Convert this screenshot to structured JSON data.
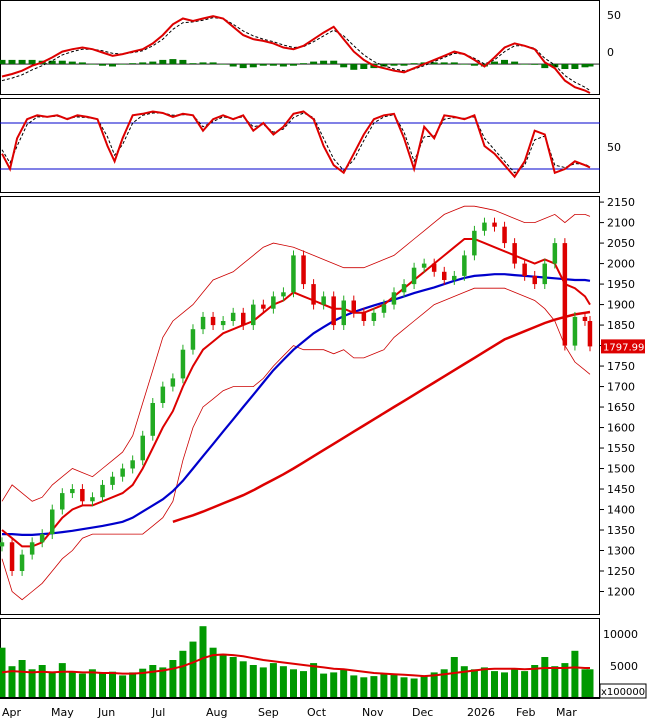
{
  "chart_data": [
    {
      "panel": "macd",
      "type": "line",
      "y_ticks": [
        "50",
        "0"
      ],
      "ylim": [
        -35,
        75
      ],
      "series": [
        {
          "role": "macd",
          "color": "#dd0000"
        },
        {
          "role": "signal",
          "color": "#000000",
          "style": "dashed"
        },
        {
          "role": "histogram",
          "color": "#006600",
          "type": "bar"
        }
      ],
      "x": [
        0,
        10,
        20,
        30,
        40,
        50,
        60,
        70,
        80,
        90,
        100,
        110,
        120,
        130,
        140,
        150,
        160,
        170,
        180,
        190,
        200,
        210,
        220,
        230,
        240,
        250,
        260,
        270,
        280,
        290,
        300,
        310,
        320,
        330,
        340,
        350,
        360,
        370,
        380,
        390,
        400,
        410,
        420,
        430,
        440,
        450,
        460,
        470,
        480,
        490,
        500,
        510,
        520,
        530,
        540,
        550,
        560,
        570,
        580,
        585
      ],
      "macd": [
        -15,
        -12,
        -8,
        -2,
        2,
        8,
        15,
        18,
        20,
        18,
        14,
        10,
        12,
        15,
        18,
        25,
        35,
        48,
        55,
        52,
        55,
        58,
        55,
        45,
        35,
        30,
        28,
        25,
        20,
        18,
        22,
        30,
        38,
        45,
        30,
        15,
        5,
        -2,
        -5,
        -8,
        -10,
        -5,
        0,
        5,
        10,
        15,
        12,
        5,
        -3,
        8,
        20,
        25,
        22,
        18,
        2,
        -5,
        -20,
        -28,
        -32,
        -35
      ],
      "signal": [
        -20,
        -17,
        -13,
        -7,
        -2,
        4,
        11,
        15,
        18,
        18,
        16,
        13,
        12,
        14,
        16,
        22,
        30,
        42,
        50,
        51,
        53,
        56,
        55,
        48,
        40,
        34,
        30,
        27,
        23,
        20,
        21,
        27,
        34,
        41,
        34,
        22,
        11,
        3,
        -2,
        -6,
        -8,
        -6,
        -2,
        3,
        8,
        13,
        12,
        7,
        0,
        5,
        15,
        22,
        22,
        19,
        7,
        -1,
        -14,
        -22,
        -28,
        -32
      ],
      "hist": [
        5,
        5,
        5,
        5,
        4,
        4,
        4,
        3,
        2,
        0,
        -2,
        -3,
        0,
        1,
        2,
        3,
        5,
        6,
        5,
        1,
        2,
        2,
        0,
        -3,
        -5,
        -4,
        -2,
        -2,
        -3,
        -2,
        1,
        3,
        4,
        4,
        -4,
        -7,
        -6,
        -5,
        -3,
        -2,
        -2,
        1,
        2,
        2,
        2,
        2,
        0,
        -2,
        -3,
        3,
        5,
        3,
        0,
        -1,
        -5,
        -4,
        -6,
        -6,
        -4,
        -3
      ]
    },
    {
      "panel": "stochastic",
      "type": "line",
      "y_ticks": [
        "50"
      ],
      "ylim": [
        -10,
        110
      ],
      "reference_lines": [
        80,
        20
      ],
      "series": [
        {
          "role": "%K",
          "color": "#dd0000"
        },
        {
          "role": "%D",
          "color": "#000000",
          "style": "dashed"
        }
      ],
      "x": [
        0,
        8,
        15,
        25,
        35,
        45,
        55,
        65,
        75,
        85,
        95,
        105,
        112,
        120,
        130,
        140,
        150,
        160,
        170,
        180,
        190,
        200,
        210,
        220,
        230,
        240,
        250,
        260,
        270,
        280,
        290,
        300,
        310,
        320,
        330,
        340,
        350,
        360,
        370,
        380,
        390,
        400,
        410,
        420,
        430,
        440,
        450,
        460,
        470,
        480,
        490,
        500,
        510,
        520,
        530,
        540,
        550,
        560,
        570,
        580,
        585
      ],
      "k": [
        40,
        20,
        60,
        85,
        90,
        88,
        90,
        85,
        90,
        88,
        85,
        50,
        30,
        60,
        90,
        92,
        95,
        93,
        88,
        92,
        90,
        70,
        85,
        90,
        85,
        90,
        70,
        80,
        65,
        75,
        92,
        95,
        85,
        50,
        25,
        15,
        40,
        65,
        85,
        90,
        92,
        60,
        20,
        75,
        60,
        90,
        88,
        85,
        90,
        50,
        40,
        25,
        10,
        30,
        70,
        65,
        15,
        20,
        30,
        25,
        22
      ],
      "d": [
        45,
        28,
        50,
        78,
        88,
        88,
        89,
        86,
        88,
        87,
        85,
        62,
        38,
        52,
        80,
        90,
        93,
        93,
        90,
        91,
        90,
        75,
        82,
        88,
        86,
        88,
        75,
        78,
        68,
        72,
        87,
        93,
        87,
        60,
        33,
        18,
        32,
        57,
        80,
        88,
        91,
        68,
        30,
        62,
        63,
        85,
        87,
        86,
        88,
        60,
        45,
        30,
        15,
        25,
        58,
        63,
        25,
        22,
        27,
        26,
        23
      ]
    },
    {
      "panel": "price",
      "type": "candlestick",
      "last_value_label": "1797.99",
      "y_ticks": [
        "2150",
        "2100",
        "2050",
        "2000",
        "1950",
        "1900",
        "1850",
        "1800",
        "1750",
        "1700",
        "1650",
        "1600",
        "1550",
        "1500",
        "1450",
        "1400",
        "1350",
        "1300",
        "1250",
        "1200"
      ],
      "ylim": [
        1150,
        2160
      ],
      "x_labels": [
        "Apr",
        "May",
        "Jun",
        "Jul",
        "Aug",
        "Sep",
        "Oct",
        "Nov",
        "Dec",
        "2026",
        "Feb",
        "Mar"
      ],
      "x": [
        0,
        10,
        20,
        30,
        40,
        50,
        60,
        70,
        80,
        90,
        100,
        110,
        120,
        130,
        140,
        150,
        160,
        170,
        180,
        190,
        200,
        210,
        220,
        230,
        240,
        250,
        260,
        270,
        280,
        290,
        300,
        310,
        320,
        330,
        340,
        350,
        360,
        370,
        380,
        390,
        400,
        410,
        420,
        430,
        440,
        450,
        460,
        470,
        480,
        490,
        500,
        510,
        520,
        530,
        540,
        550,
        560,
        570,
        580,
        585
      ],
      "close": [
        1320,
        1250,
        1290,
        1320,
        1340,
        1400,
        1440,
        1450,
        1420,
        1430,
        1460,
        1480,
        1500,
        1520,
        1580,
        1660,
        1700,
        1720,
        1790,
        1840,
        1870,
        1850,
        1860,
        1880,
        1850,
        1900,
        1890,
        1920,
        1930,
        2020,
        1950,
        1900,
        1920,
        1850,
        1910,
        1880,
        1860,
        1880,
        1900,
        1930,
        1950,
        1990,
        2000,
        1980,
        1960,
        1970,
        2020,
        2080,
        2100,
        2090,
        2050,
        2000,
        1970,
        1950,
        2000,
        2050,
        1800,
        1870,
        1860,
        1798
      ],
      "bands": {
        "upper": [
          1420,
          1460,
          1440,
          1420,
          1430,
          1460,
          1480,
          1500,
          1490,
          1480,
          1500,
          1520,
          1540,
          1580,
          1660,
          1740,
          1820,
          1860,
          1880,
          1900,
          1930,
          1960,
          1970,
          1980,
          2000,
          2020,
          2040,
          2050,
          2045,
          2040,
          2030,
          2020,
          2010,
          2000,
          1990,
          1990,
          1990,
          2000,
          2010,
          2020,
          2040,
          2060,
          2080,
          2100,
          2120,
          2130,
          2140,
          2140,
          2135,
          2130,
          2120,
          2110,
          2100,
          2100,
          2110,
          2120,
          2100,
          2120,
          2120,
          2115
        ],
        "mid": [
          1350,
          1330,
          1310,
          1310,
          1320,
          1350,
          1380,
          1400,
          1410,
          1410,
          1420,
          1430,
          1440,
          1460,
          1500,
          1550,
          1600,
          1640,
          1700,
          1750,
          1790,
          1810,
          1830,
          1840,
          1850,
          1860,
          1880,
          1900,
          1910,
          1930,
          1920,
          1910,
          1900,
          1890,
          1890,
          1880,
          1880,
          1890,
          1900,
          1920,
          1940,
          1960,
          1980,
          2000,
          2020,
          2040,
          2060,
          2060,
          2050,
          2040,
          2030,
          2020,
          2010,
          2000,
          2010,
          2000,
          1950,
          1940,
          1920,
          1900
        ],
        "lower": [
          1280,
          1200,
          1180,
          1200,
          1220,
          1250,
          1280,
          1300,
          1330,
          1340,
          1340,
          1340,
          1340,
          1340,
          1340,
          1360,
          1380,
          1420,
          1520,
          1600,
          1650,
          1670,
          1690,
          1700,
          1700,
          1700,
          1720,
          1750,
          1775,
          1800,
          1790,
          1790,
          1790,
          1780,
          1790,
          1770,
          1770,
          1780,
          1790,
          1820,
          1840,
          1860,
          1880,
          1900,
          1910,
          1920,
          1930,
          1940,
          1940,
          1940,
          1940,
          1930,
          1920,
          1910,
          1890,
          1860,
          1800,
          1760,
          1740,
          1730
        ]
      },
      "ma100": [
        1340,
        1340,
        1338,
        1338,
        1340,
        1342,
        1345,
        1348,
        1352,
        1356,
        1360,
        1365,
        1370,
        1380,
        1395,
        1410,
        1425,
        1445,
        1470,
        1500,
        1530,
        1560,
        1590,
        1620,
        1650,
        1680,
        1710,
        1740,
        1765,
        1790,
        1810,
        1830,
        1845,
        1860,
        1872,
        1882,
        1890,
        1898,
        1905,
        1912,
        1920,
        1928,
        1935,
        1942,
        1950,
        1958,
        1965,
        1970,
        1972,
        1974,
        1974,
        1972,
        1970,
        1968,
        1966,
        1964,
        1962,
        1960,
        1960,
        1958
      ],
      "ma200": [
        null,
        null,
        null,
        null,
        null,
        null,
        null,
        null,
        null,
        null,
        null,
        null,
        null,
        null,
        null,
        null,
        null,
        1370,
        1378,
        1386,
        1395,
        1405,
        1415,
        1425,
        1435,
        1447,
        1460,
        1473,
        1486,
        1500,
        1515,
        1530,
        1545,
        1560,
        1575,
        1590,
        1605,
        1620,
        1635,
        1650,
        1665,
        1680,
        1695,
        1710,
        1725,
        1740,
        1755,
        1770,
        1785,
        1800,
        1815,
        1825,
        1835,
        1845,
        1855,
        1863,
        1870,
        1876,
        1880,
        1882
      ]
    },
    {
      "panel": "volume",
      "type": "bar",
      "y_ticks": [
        "10000",
        "5000"
      ],
      "unit_label": "x100000",
      "ylim": [
        0,
        12500
      ],
      "volume": [
        8000,
        5000,
        6000,
        4500,
        5200,
        4000,
        5500,
        4200,
        3800,
        4500,
        3900,
        4100,
        3500,
        4000,
        4600,
        5200,
        4800,
        6000,
        7500,
        9000,
        11500,
        8000,
        7000,
        6500,
        5800,
        5200,
        4800,
        5500,
        5000,
        4500,
        4200,
        5500,
        3800,
        4000,
        4500,
        3500,
        3200,
        3400,
        3800,
        3600,
        3200,
        3000,
        3500,
        4000,
        4500,
        6500,
        5000,
        4500,
        4800,
        4200,
        4000,
        4500,
        4200,
        5200,
        6500,
        5000,
        5500,
        7500,
        4500,
        4500
      ],
      "vol_ma": [
        4000,
        4200,
        4100,
        4000,
        4100,
        4000,
        4100,
        4100,
        4000,
        4000,
        3900,
        3900,
        3800,
        3800,
        3900,
        4100,
        4300,
        4600,
        5000,
        5600,
        6300,
        6800,
        6900,
        6800,
        6600,
        6300,
        6000,
        5800,
        5600,
        5400,
        5200,
        5000,
        4800,
        4600,
        4500,
        4300,
        4100,
        3900,
        3800,
        3700,
        3600,
        3500,
        3400,
        3500,
        3700,
        3900,
        4100,
        4300,
        4500,
        4600,
        4600,
        4600,
        4500,
        4600,
        4700,
        4700,
        4700,
        4800,
        4700,
        4700
      ]
    }
  ]
}
